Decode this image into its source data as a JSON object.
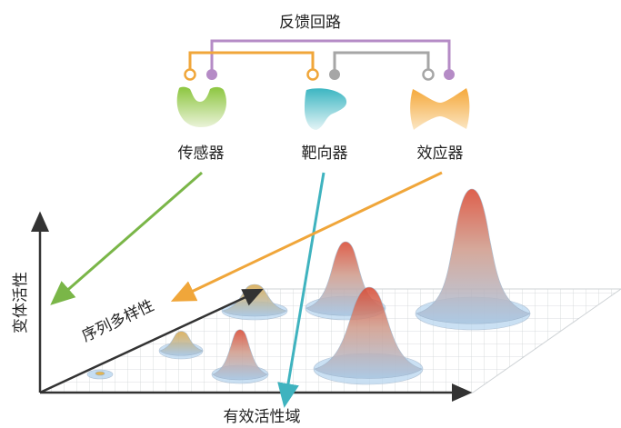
{
  "title": "反馈回路",
  "modules": [
    {
      "label": "传感器",
      "color": "#7ab648"
    },
    {
      "label": "靶向器",
      "color": "#3fb3bf"
    },
    {
      "label": "效应器",
      "color": "#f0a63a"
    }
  ],
  "loops": {
    "purple": "#b58bc6",
    "orange": "#f0a63a",
    "gray": "#a6a6a6"
  },
  "axes": {
    "y_label": "变体活性",
    "x_label": "有效活性域",
    "diag_label": "序列多样性"
  },
  "arrow_colors": {
    "sensor": "#7ab648",
    "targeter": "#3fb3bf",
    "effector": "#f0a63a"
  }
}
